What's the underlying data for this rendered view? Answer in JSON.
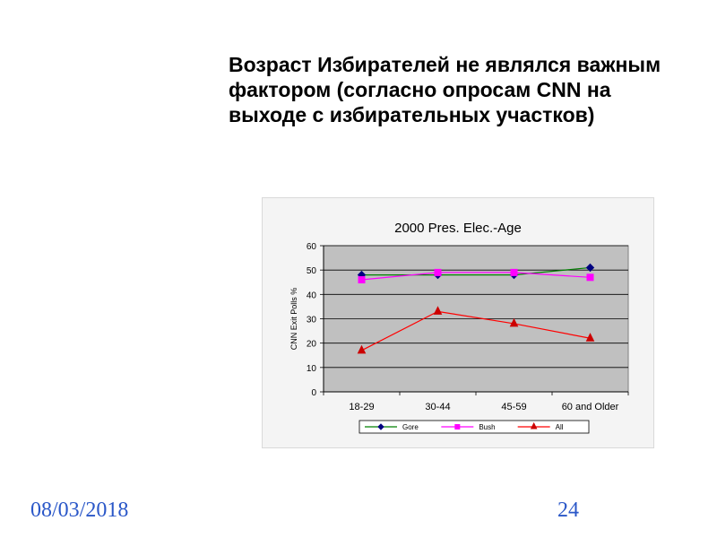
{
  "slide": {
    "title": "Возраст Избирателей не являлся важным фактором (согласно опросам CNN на выходе с избирательных участков)",
    "date": "08/03/2018",
    "page_number": "24"
  },
  "colors": {
    "plot_background": "#c0c0c0",
    "chart_background": "#f4f4f4",
    "gridline": "#000000",
    "footer_text": "#2a57c8"
  },
  "chart_data": {
    "type": "line",
    "title": "2000 Pres. Elec.-Age",
    "xlabel": "",
    "ylabel": "CNN Exit Polls %",
    "categories": [
      "18-29",
      "30-44",
      "45-59",
      "60 and Older"
    ],
    "ylim": [
      0,
      60
    ],
    "yticks": [
      0,
      10,
      20,
      30,
      40,
      50,
      60
    ],
    "grid": true,
    "legend_position": "bottom",
    "series": [
      {
        "name": "Gore",
        "values": [
          48,
          48,
          48,
          51
        ],
        "color": "#008000",
        "marker_color": "#000080",
        "marker": "diamond"
      },
      {
        "name": "Bush",
        "values": [
          46,
          49,
          49,
          47
        ],
        "color": "#ff00ff",
        "marker_color": "#ff00ff",
        "marker": "square"
      },
      {
        "name": "All",
        "values": [
          17,
          33,
          28,
          22
        ],
        "color": "#ff0000",
        "marker_color": "#cc0000",
        "marker": "triangle"
      }
    ]
  }
}
